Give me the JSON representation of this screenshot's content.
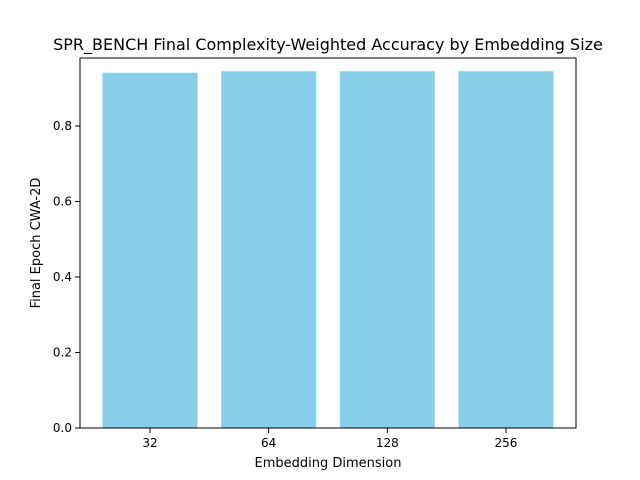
{
  "chart_data": {
    "type": "bar",
    "title": "SPR_BENCH Final Complexity-Weighted Accuracy by Embedding Size",
    "xlabel": "Embedding Dimension",
    "ylabel": "Final Epoch CWA-2D",
    "categories": [
      "32",
      "64",
      "128",
      "256"
    ],
    "values": [
      0.941,
      0.945,
      0.945,
      0.945
    ],
    "ylim": [
      0,
      0.98
    ],
    "yticks": [
      0.0,
      0.2,
      0.4,
      0.6,
      0.8
    ],
    "ytick_labels": [
      "0.0",
      "0.2",
      "0.4",
      "0.6",
      "0.8"
    ],
    "bar_color": "#87CEEB",
    "grid": false,
    "legend": "none"
  }
}
